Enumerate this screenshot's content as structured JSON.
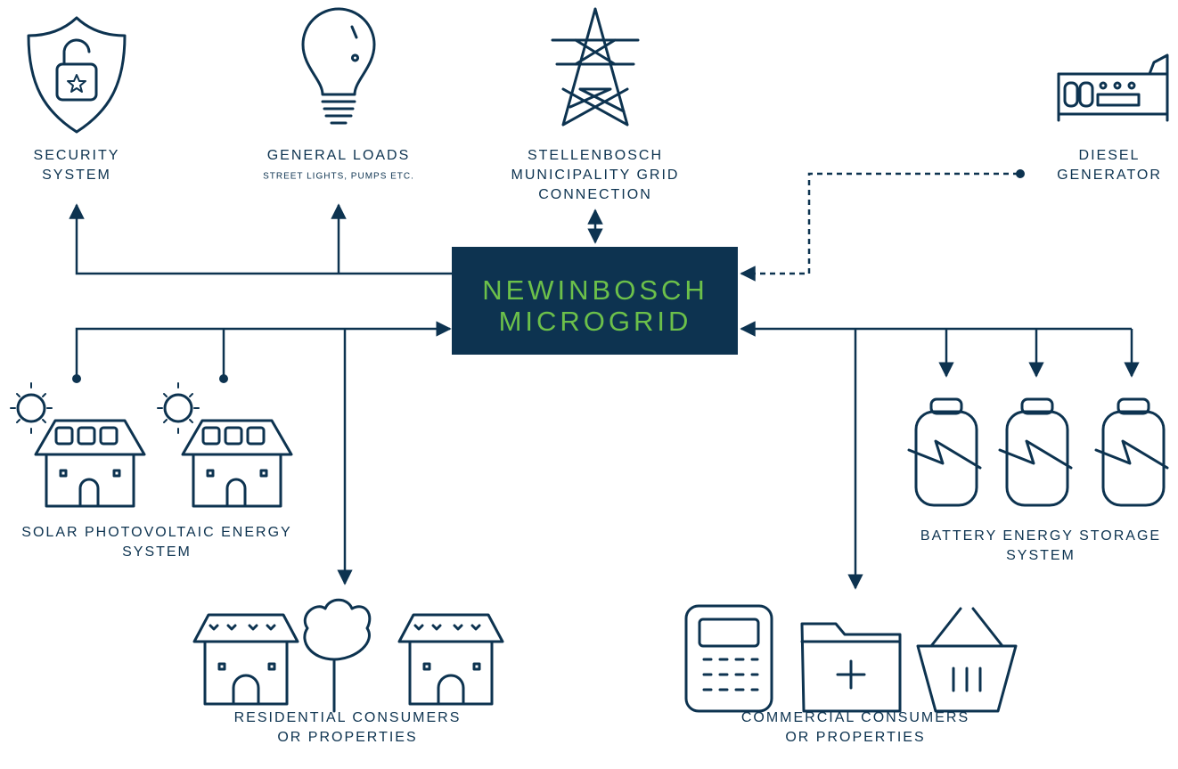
{
  "center": {
    "lines": [
      "NEWINBOSCH",
      "MICROGRID"
    ]
  },
  "nodes": [
    {
      "lines": [
        "SECURITY",
        "SYSTEM"
      ]
    },
    {
      "lines": [
        "GENERAL LOADS"
      ],
      "sublabel": "STREET LIGHTS, PUMPS ETC."
    },
    {
      "lines": [
        "STELLENBOSCH",
        "MUNICIPALITY GRID",
        "CONNECTION"
      ]
    },
    {
      "lines": [
        "DIESEL",
        "GENERATOR"
      ]
    },
    {
      "lines": [
        "SOLAR PHOTOVOLTAIC ENERGY",
        "SYSTEM"
      ]
    },
    {
      "lines": [
        "BATTERY ENERGY STORAGE",
        "SYSTEM"
      ]
    },
    {
      "lines": [
        "RESIDENTIAL CONSUMERS",
        "OR PROPERTIES"
      ]
    },
    {
      "lines": [
        "COMMERCIAL CONSUMERS",
        "OR PROPERTIES"
      ]
    }
  ]
}
